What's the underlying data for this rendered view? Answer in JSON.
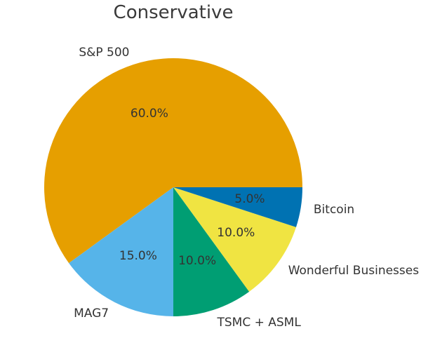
{
  "chart_data": {
    "type": "pie",
    "title": "Conservative",
    "labels": [
      "S&P 500",
      "MAG7",
      "TSMC + ASML",
      "Wonderful Businesses",
      "Bitcoin"
    ],
    "values": [
      60.0,
      15.0,
      10.0,
      10.0,
      5.0
    ],
    "autopct_labels": [
      "60.0%",
      "15.0%",
      "10.0%",
      "10.0%",
      "5.0%"
    ],
    "colors": [
      "#E69F00",
      "#56B4E9",
      "#009E73",
      "#F0E442",
      "#0072B2"
    ],
    "start_angle_deg": 0,
    "direction": "counterclockwise",
    "legend_position": "none",
    "background_color": "#ffffff",
    "title_color": "#3a3a3a",
    "label_color": "#333333"
  }
}
